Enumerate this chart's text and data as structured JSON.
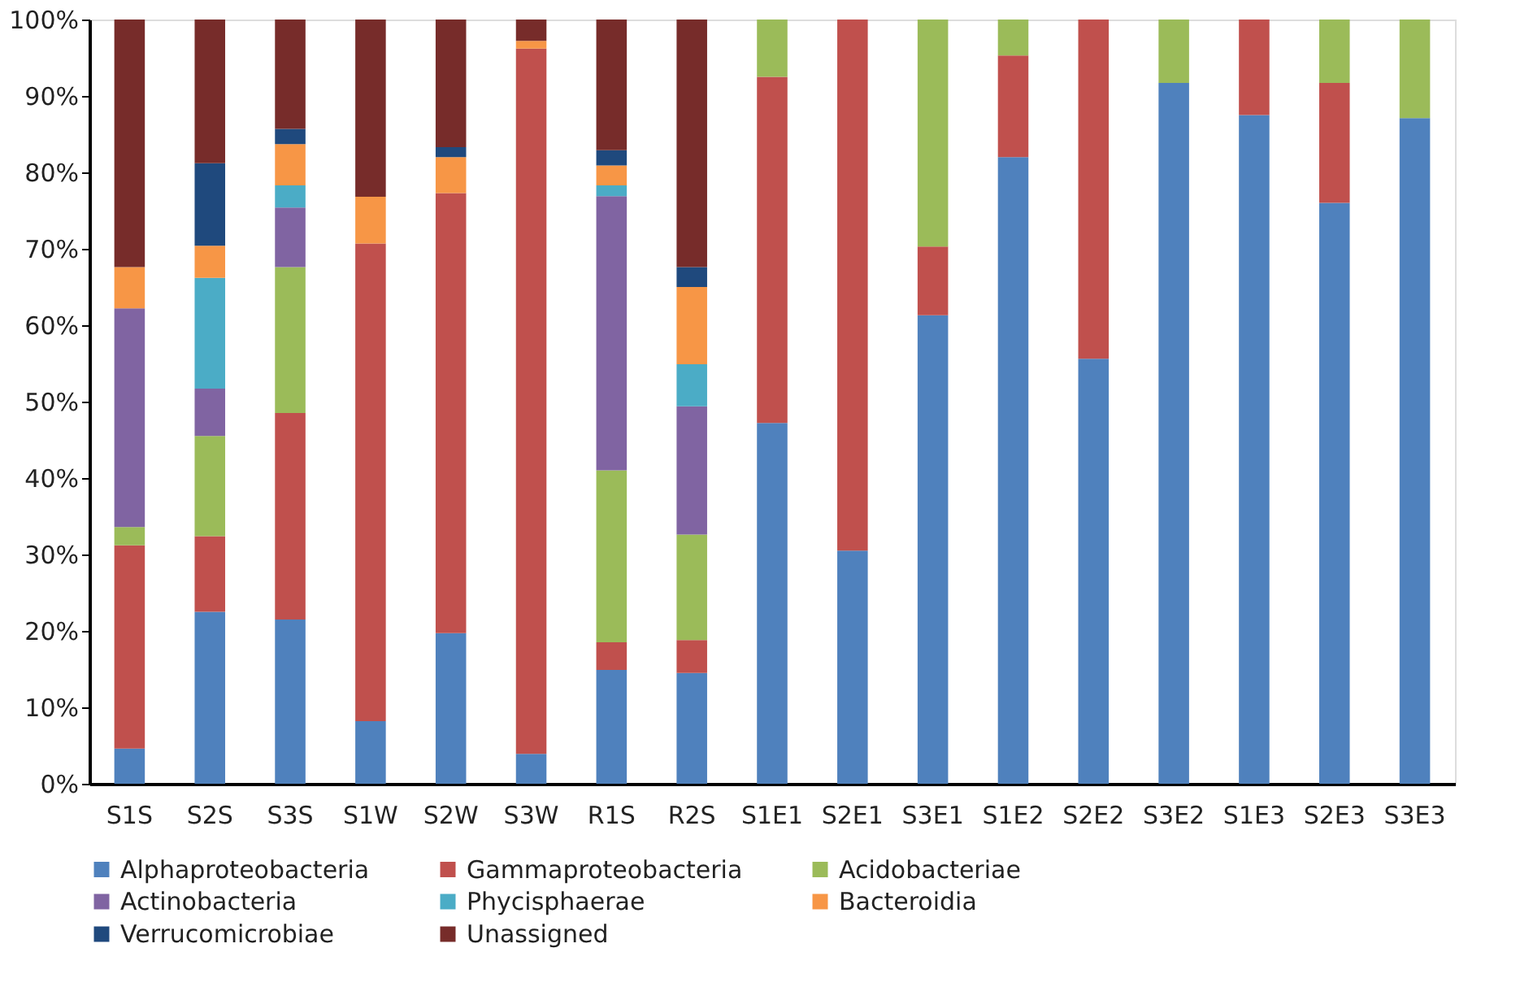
{
  "chart_data": {
    "type": "bar",
    "stacked": true,
    "categories": [
      "S1S",
      "S2S",
      "S3S",
      "S1W",
      "S2W",
      "S3W",
      "R1S",
      "R2S",
      "S1E1",
      "S2E1",
      "S3E1",
      "S1E2",
      "S2E2",
      "S3E2",
      "S1E3",
      "S2E3",
      "S3E3"
    ],
    "series": [
      {
        "name": "Alphaproteobacteria",
        "color": "#4f81bd",
        "values": [
          4.6,
          22.5,
          21.5,
          8.2,
          19.7,
          3.9,
          14.9,
          14.5,
          47.2,
          30.5,
          61.3,
          82.0,
          55.6,
          91.7,
          87.5,
          76.0,
          87.1
        ]
      },
      {
        "name": "Gammaproteobacteria",
        "color": "#c0504d",
        "values": [
          26.6,
          9.9,
          27.0,
          62.5,
          57.6,
          92.3,
          3.6,
          4.3,
          45.3,
          69.5,
          9.0,
          13.3,
          44.4,
          null,
          12.5,
          15.7,
          null
        ]
      },
      {
        "name": "Acidobacteriae",
        "color": "#9bbb59",
        "values": [
          2.4,
          13.1,
          19.1,
          null,
          null,
          null,
          22.5,
          13.8,
          7.5,
          null,
          29.7,
          4.7,
          null,
          8.3,
          null,
          8.3,
          12.9
        ]
      },
      {
        "name": "Actinobacteria",
        "color": "#8064a2",
        "values": [
          28.6,
          6.2,
          7.8,
          null,
          null,
          null,
          35.9,
          16.8,
          null,
          null,
          null,
          null,
          null,
          null,
          null,
          null,
          null
        ]
      },
      {
        "name": "Phycisphaerae",
        "color": "#4bacc6",
        "values": [
          null,
          14.5,
          2.9,
          null,
          null,
          null,
          1.4,
          5.5,
          null,
          null,
          null,
          null,
          null,
          null,
          null,
          null,
          null
        ]
      },
      {
        "name": "Bacteroidia",
        "color": "#f79646",
        "values": [
          5.4,
          4.2,
          5.4,
          6.1,
          4.7,
          1.0,
          2.6,
          10.1,
          null,
          null,
          null,
          null,
          null,
          null,
          null,
          null,
          null
        ]
      },
      {
        "name": "Verrucomicrobiae",
        "color": "#1f497d",
        "values": [
          null,
          10.8,
          2.0,
          null,
          1.3,
          null,
          2.0,
          2.6,
          null,
          null,
          null,
          null,
          null,
          null,
          null,
          null,
          null
        ]
      },
      {
        "name": "Unassigned",
        "color": "#772c2a",
        "values": [
          32.4,
          18.8,
          14.3,
          23.2,
          16.7,
          2.8,
          17.1,
          32.4,
          null,
          null,
          null,
          null,
          null,
          null,
          null,
          null,
          null
        ]
      }
    ],
    "ylim": [
      0,
      100
    ],
    "yticks": [
      {
        "value": 0,
        "label": "0%"
      },
      {
        "value": 10,
        "label": "10%"
      },
      {
        "value": 20,
        "label": "20%"
      },
      {
        "value": 30,
        "label": "30%"
      },
      {
        "value": 40,
        "label": "40%"
      },
      {
        "value": 50,
        "label": "50%"
      },
      {
        "value": 60,
        "label": "60%"
      },
      {
        "value": 70,
        "label": "70%"
      },
      {
        "value": 80,
        "label": "80%"
      },
      {
        "value": 90,
        "label": "90%"
      },
      {
        "value": 100,
        "label": "100%"
      }
    ],
    "grid": false,
    "legend": "bottom"
  }
}
